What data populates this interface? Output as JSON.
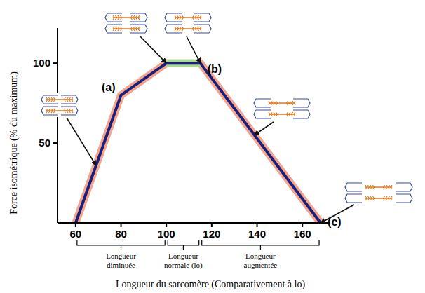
{
  "chart_data": {
    "type": "line",
    "x_label": "Longueur du sarcomère (Comparativement à lo)",
    "y_label": "Force isométrique (% du maximum)",
    "x": [
      60,
      80,
      100,
      115,
      168
    ],
    "series": [
      {
        "values": [
          0,
          80,
          100,
          100,
          0
        ],
        "color": "#1c1f7a"
      }
    ],
    "xlim": [
      52,
      172
    ],
    "ylim": [
      0,
      122
    ],
    "xticks": [
      60,
      80,
      100,
      120,
      140,
      160
    ],
    "yticks": [
      50,
      100
    ],
    "grid": false,
    "annotations": [
      {
        "text": "(a)",
        "x": 80,
        "y": 80
      },
      {
        "text": "(b)",
        "x": 115,
        "y": 100
      },
      {
        "text": "(c)",
        "x": 168,
        "y": 0
      }
    ],
    "regions": [
      {
        "label": "Longueur diminuée",
        "x": [
          60,
          100
        ]
      },
      {
        "label": "Longueur normale (lo)",
        "x": [
          100,
          115
        ]
      },
      {
        "label": "Longueur augmentée",
        "x": [
          115,
          168
        ]
      }
    ]
  }
}
